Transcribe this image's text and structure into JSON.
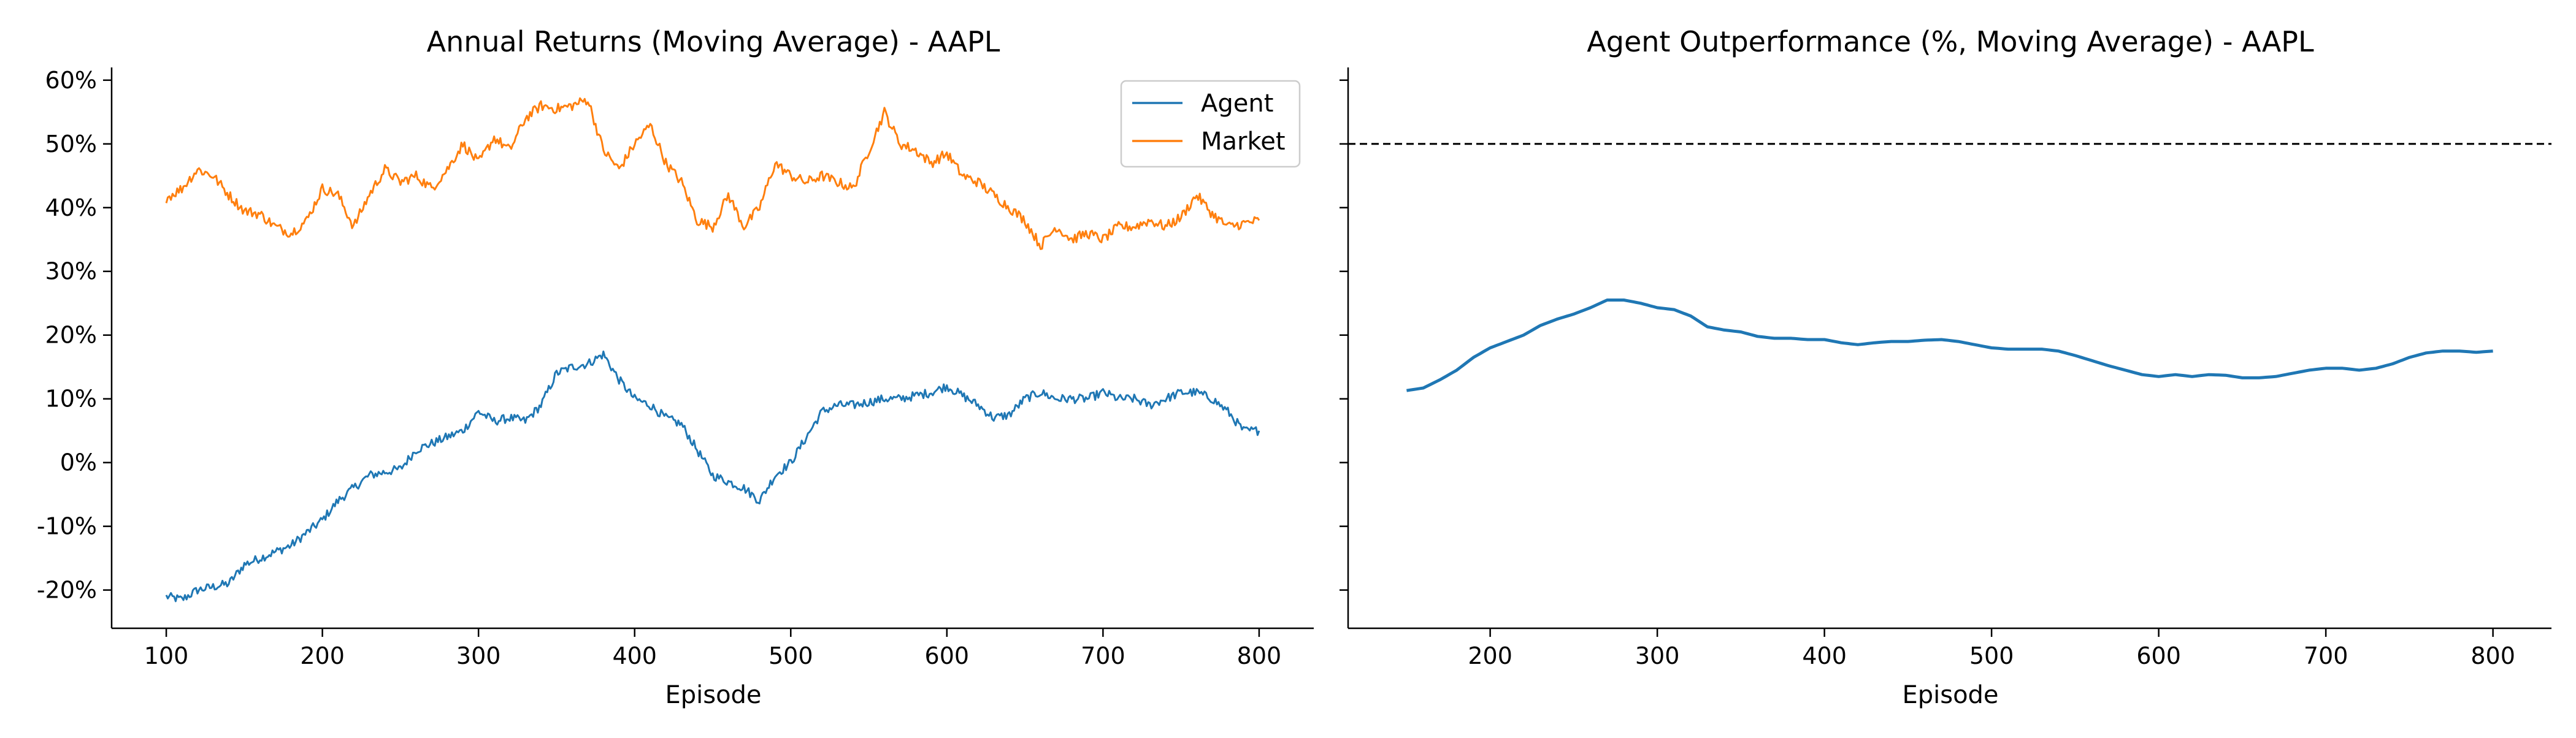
{
  "chart_data": [
    {
      "type": "line",
      "title": "Annual Returns (Moving Average) - AAPL",
      "xlabel": "Episode",
      "ylabel": "",
      "xlim": [
        65,
        835
      ],
      "ylim": [
        -0.26,
        0.62
      ],
      "x_ticks": [
        100,
        200,
        300,
        400,
        500,
        600,
        700,
        800
      ],
      "x_tick_labels": [
        "100",
        "200",
        "300",
        "400",
        "500",
        "600",
        "700",
        "800"
      ],
      "y_ticks": [
        -0.2,
        -0.1,
        0.0,
        0.1,
        0.2,
        0.3,
        0.4,
        0.5,
        0.6
      ],
      "y_tick_labels": [
        "-20%",
        "-10%",
        "0%",
        "10%",
        "20%",
        "30%",
        "40%",
        "50%",
        "60%"
      ],
      "grid": false,
      "legend_position": "top-right",
      "series": [
        {
          "name": "Agent",
          "color": "#1f77b4",
          "x": [
            100,
            110,
            120,
            130,
            140,
            150,
            160,
            170,
            180,
            190,
            200,
            210,
            220,
            230,
            240,
            250,
            260,
            270,
            280,
            290,
            300,
            310,
            320,
            330,
            340,
            350,
            360,
            370,
            380,
            390,
            400,
            410,
            420,
            430,
            440,
            450,
            460,
            470,
            480,
            490,
            500,
            510,
            520,
            530,
            540,
            550,
            560,
            570,
            580,
            590,
            600,
            610,
            620,
            630,
            640,
            650,
            660,
            670,
            680,
            690,
            700,
            710,
            720,
            730,
            740,
            750,
            760,
            770,
            780,
            790,
            800
          ],
          "values": [
            -0.21,
            -0.215,
            -0.2,
            -0.195,
            -0.19,
            -0.16,
            -0.15,
            -0.14,
            -0.13,
            -0.11,
            -0.09,
            -0.06,
            -0.04,
            -0.02,
            -0.015,
            -0.01,
            0.02,
            0.03,
            0.04,
            0.05,
            0.08,
            0.065,
            0.07,
            0.065,
            0.09,
            0.14,
            0.15,
            0.155,
            0.17,
            0.13,
            0.1,
            0.09,
            0.07,
            0.06,
            0.02,
            -0.02,
            -0.03,
            -0.04,
            -0.06,
            -0.02,
            0.0,
            0.04,
            0.08,
            0.09,
            0.09,
            0.095,
            0.1,
            0.1,
            0.105,
            0.11,
            0.12,
            0.105,
            0.09,
            0.07,
            0.075,
            0.1,
            0.11,
            0.1,
            0.1,
            0.1,
            0.11,
            0.1,
            0.1,
            0.09,
            0.1,
            0.11,
            0.11,
            0.1,
            0.08,
            0.05,
            0.05
          ],
          "jitter": 0.007
        },
        {
          "name": "Market",
          "color": "#ff7f0e",
          "x": [
            100,
            110,
            120,
            130,
            140,
            150,
            160,
            170,
            180,
            190,
            200,
            210,
            220,
            230,
            240,
            250,
            260,
            270,
            280,
            290,
            300,
            310,
            320,
            330,
            340,
            350,
            360,
            370,
            380,
            390,
            400,
            410,
            420,
            430,
            440,
            450,
            460,
            470,
            480,
            490,
            500,
            510,
            520,
            530,
            540,
            550,
            560,
            570,
            580,
            590,
            600,
            610,
            620,
            630,
            640,
            650,
            660,
            670,
            680,
            690,
            700,
            710,
            720,
            730,
            740,
            750,
            760,
            770,
            780,
            790,
            800
          ],
          "values": [
            0.415,
            0.43,
            0.46,
            0.45,
            0.42,
            0.395,
            0.39,
            0.37,
            0.36,
            0.38,
            0.43,
            0.42,
            0.37,
            0.42,
            0.46,
            0.44,
            0.45,
            0.43,
            0.46,
            0.5,
            0.47,
            0.51,
            0.49,
            0.54,
            0.56,
            0.555,
            0.56,
            0.57,
            0.49,
            0.46,
            0.5,
            0.53,
            0.47,
            0.44,
            0.38,
            0.37,
            0.42,
            0.37,
            0.4,
            0.47,
            0.45,
            0.44,
            0.45,
            0.44,
            0.43,
            0.49,
            0.55,
            0.5,
            0.49,
            0.47,
            0.485,
            0.45,
            0.44,
            0.42,
            0.4,
            0.38,
            0.34,
            0.37,
            0.35,
            0.36,
            0.35,
            0.37,
            0.37,
            0.38,
            0.37,
            0.385,
            0.42,
            0.39,
            0.37,
            0.375,
            0.38
          ],
          "jitter": 0.008
        }
      ]
    },
    {
      "type": "line",
      "title": "Agent Outperformance (%, Moving Average) - AAPL",
      "xlabel": "Episode",
      "ylabel": "",
      "xlim": [
        115,
        835
      ],
      "ylim": [
        -0.26,
        0.62
      ],
      "x_ticks": [
        200,
        300,
        400,
        500,
        600,
        700,
        800
      ],
      "x_tick_labels": [
        "200",
        "300",
        "400",
        "500",
        "600",
        "700",
        "800"
      ],
      "y_ticks": [
        -0.2,
        -0.1,
        0.0,
        0.1,
        0.2,
        0.3,
        0.4,
        0.5,
        0.6
      ],
      "y_tick_labels": [
        "",
        "",
        "",
        "",
        "",
        "",
        "",
        "",
        ""
      ],
      "grid": false,
      "reference_line": {
        "y": 0.5,
        "style": "dashed",
        "color": "#000000"
      },
      "series": [
        {
          "color": "#1f77b4",
          "x": [
            150,
            160,
            170,
            180,
            190,
            200,
            210,
            220,
            230,
            240,
            250,
            260,
            270,
            280,
            290,
            300,
            310,
            320,
            330,
            340,
            350,
            360,
            370,
            380,
            390,
            400,
            410,
            420,
            430,
            440,
            450,
            460,
            470,
            480,
            490,
            500,
            510,
            520,
            530,
            540,
            550,
            560,
            570,
            580,
            590,
            600,
            610,
            620,
            630,
            640,
            650,
            660,
            670,
            680,
            690,
            700,
            710,
            720,
            730,
            740,
            750,
            760,
            770,
            780,
            790,
            800
          ],
          "values": [
            0.113,
            0.117,
            0.13,
            0.145,
            0.165,
            0.18,
            0.19,
            0.2,
            0.215,
            0.225,
            0.233,
            0.243,
            0.255,
            0.255,
            0.25,
            0.243,
            0.24,
            0.23,
            0.213,
            0.208,
            0.205,
            0.198,
            0.195,
            0.195,
            0.193,
            0.193,
            0.188,
            0.185,
            0.188,
            0.19,
            0.19,
            0.192,
            0.193,
            0.19,
            0.185,
            0.18,
            0.178,
            0.178,
            0.178,
            0.175,
            0.168,
            0.16,
            0.152,
            0.145,
            0.138,
            0.135,
            0.138,
            0.135,
            0.138,
            0.137,
            0.133,
            0.133,
            0.135,
            0.14,
            0.145,
            0.148,
            0.148,
            0.145,
            0.148,
            0.155,
            0.165,
            0.172,
            0.175,
            0.175,
            0.173,
            0.175
          ],
          "jitter": 0
        }
      ]
    }
  ]
}
